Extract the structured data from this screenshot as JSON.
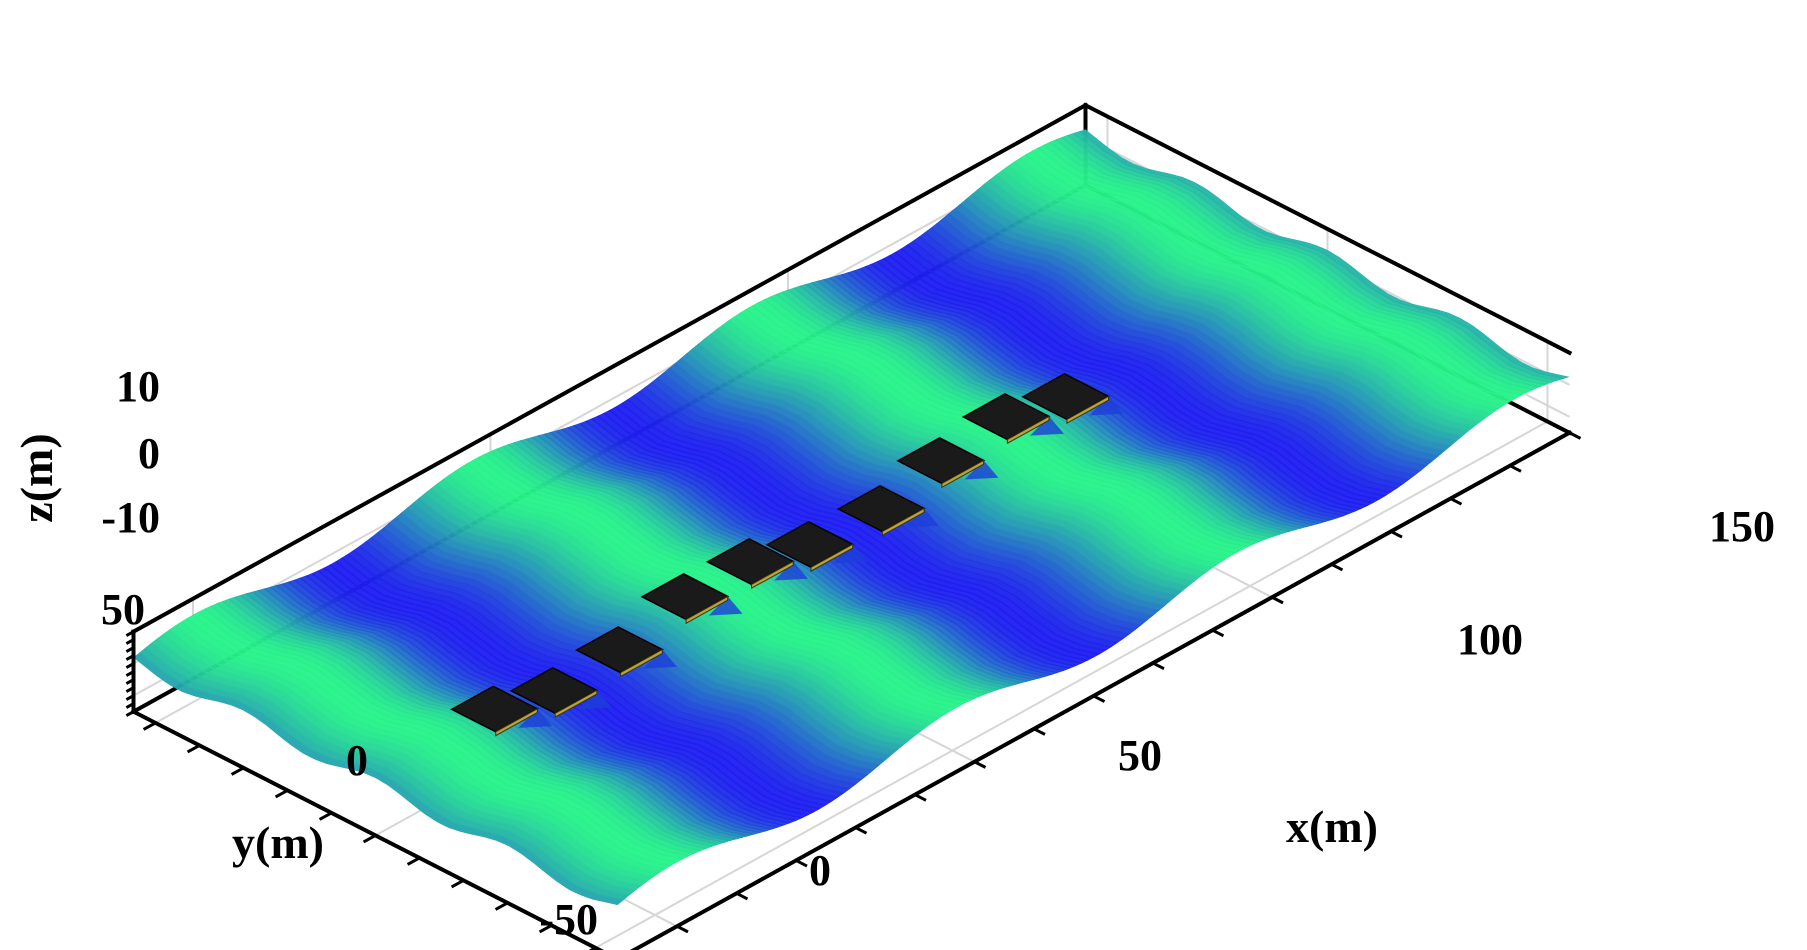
{
  "chart_data": {
    "type": "surface",
    "xlabel": "x(m)",
    "ylabel": "y(m)",
    "zlabel": "z(m)",
    "xlim": [
      -10,
      150
    ],
    "ylim": [
      -55,
      55
    ],
    "zlim": [
      -15,
      10
    ],
    "x_ticks": [
      0,
      50,
      100,
      150
    ],
    "y_ticks": [
      -50,
      0,
      50
    ],
    "z_ticks": [
      -10,
      0,
      10
    ],
    "surface": {
      "description": "wave surface z = 4*cos(2*pi*x/47) + 2*cos(2*pi*y/30)",
      "amplitude_z": 4,
      "wavelength_x": 47,
      "colormap": [
        "#1e1ef0",
        "#28f28a"
      ]
    },
    "grid": true,
    "objects": {
      "type": "floating-platform",
      "x": [
        10,
        20,
        31,
        42,
        53,
        63,
        75,
        85,
        96,
        106
      ],
      "y": [
        0,
        0,
        0,
        0,
        0,
        0,
        0,
        0,
        0,
        0
      ],
      "z": [
        0,
        0,
        0,
        0,
        0,
        0,
        0,
        0,
        0,
        0
      ]
    }
  }
}
